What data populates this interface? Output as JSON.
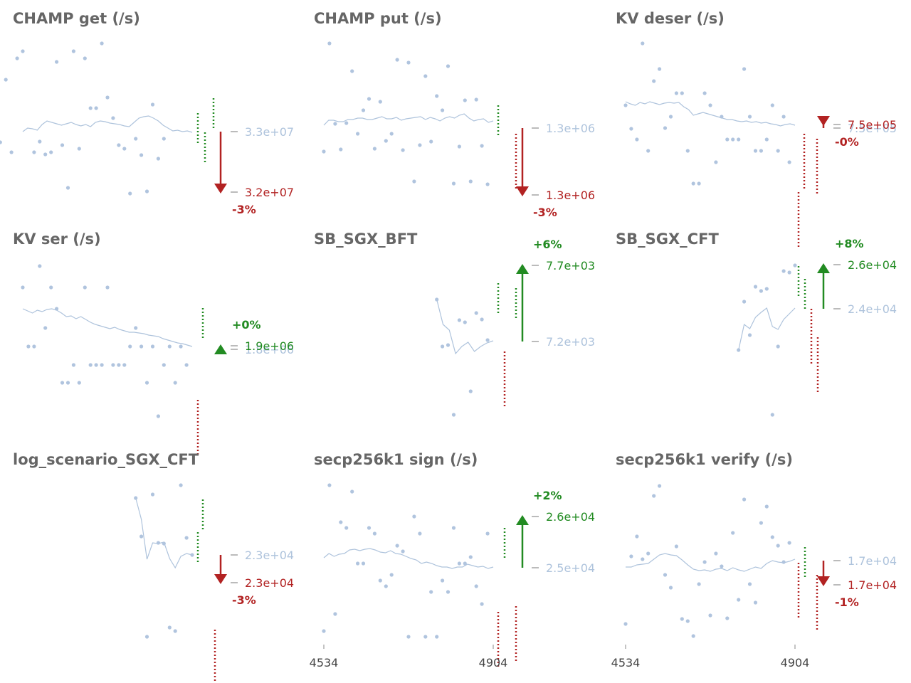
{
  "chart_data": [
    {
      "type": "scatter",
      "title": "CHAMP get (/s)",
      "points": [
        [
          -5,
          195
        ],
        [
          -4,
          200
        ],
        [
          -3,
          112
        ],
        [
          -2,
          214
        ],
        [
          -1,
          82
        ],
        [
          0,
          72
        ],
        [
          2,
          214
        ],
        [
          3,
          199
        ],
        [
          4,
          217
        ],
        [
          5,
          214
        ],
        [
          6,
          87
        ],
        [
          7,
          204
        ],
        [
          8,
          264
        ],
        [
          9,
          72
        ],
        [
          10,
          209
        ],
        [
          11,
          82
        ],
        [
          12,
          152
        ],
        [
          13,
          152
        ],
        [
          14,
          61
        ],
        [
          15,
          137
        ],
        [
          16,
          166
        ],
        [
          17,
          204
        ],
        [
          18,
          209
        ],
        [
          19,
          272
        ],
        [
          20,
          195
        ],
        [
          21,
          218
        ],
        [
          22,
          269
        ],
        [
          23,
          147
        ],
        [
          24,
          223
        ],
        [
          25,
          195
        ]
      ],
      "line": [
        185,
        180,
        181,
        183,
        175,
        170,
        172,
        174,
        176,
        174,
        172,
        175,
        177,
        175,
        178,
        172,
        170,
        171,
        173,
        174,
        175,
        177,
        178,
        172,
        166,
        164,
        163,
        166,
        170,
        176,
        180,
        184,
        183,
        185,
        184,
        186
      ],
      "bars": [
        [
          2,
          278,
          159,
          "#228b22"
        ],
        [
          3,
          288,
          186,
          "#228b22"
        ],
        [
          3,
          300,
          138,
          "#228b22"
        ]
      ],
      "current_label": "3.3e+07",
      "new_label": "3.2e+07",
      "change": "-3%",
      "direction": "down"
    },
    {
      "type": "scatter",
      "title": "CHAMP put (/s)",
      "points": [
        [
          0,
          213
        ],
        [
          1,
          61
        ],
        [
          2,
          174
        ],
        [
          3,
          210
        ],
        [
          4,
          173
        ],
        [
          5,
          100
        ],
        [
          6,
          188
        ],
        [
          7,
          155
        ],
        [
          8,
          139
        ],
        [
          9,
          209
        ],
        [
          10,
          143
        ],
        [
          11,
          198
        ],
        [
          12,
          188
        ],
        [
          13,
          84
        ],
        [
          14,
          211
        ],
        [
          15,
          88
        ],
        [
          16,
          255
        ],
        [
          17,
          204
        ],
        [
          18,
          107
        ],
        [
          19,
          199
        ],
        [
          20,
          135
        ],
        [
          21,
          155
        ],
        [
          22,
          93
        ],
        [
          23,
          258
        ],
        [
          24,
          206
        ],
        [
          25,
          141
        ],
        [
          26,
          255
        ],
        [
          27,
          140
        ],
        [
          28,
          205
        ],
        [
          29,
          259
        ]
      ],
      "line": [
        176,
        169,
        169,
        171,
        171,
        168,
        168,
        166,
        166,
        168,
        168,
        166,
        164,
        167,
        167,
        165,
        169,
        167,
        166,
        165,
        164,
        168,
        165,
        167,
        170,
        166,
        164,
        166,
        162,
        160,
        166,
        170,
        168,
        167,
        172,
        170
      ],
      "bars": [
        [
          2,
          700,
          148,
          "#228b22"
        ],
        [
          3,
          725,
          188,
          "#b22222"
        ]
      ],
      "current_label": "1.3e+06",
      "new_label": "1.3e+06",
      "change": "-3%",
      "direction": "down"
    },
    {
      "type": "scatter",
      "title": "KV deser (/s)",
      "points": [
        [
          0,
          148
        ],
        [
          1,
          181
        ],
        [
          2,
          196
        ],
        [
          3,
          61
        ],
        [
          4,
          212
        ],
        [
          5,
          114
        ],
        [
          6,
          97
        ],
        [
          7,
          180
        ],
        [
          8,
          164
        ],
        [
          9,
          131
        ],
        [
          10,
          131
        ],
        [
          11,
          212
        ],
        [
          12,
          258
        ],
        [
          13,
          258
        ],
        [
          14,
          131
        ],
        [
          15,
          148
        ],
        [
          16,
          228
        ],
        [
          17,
          164
        ],
        [
          18,
          196
        ],
        [
          19,
          196
        ],
        [
          20,
          196
        ],
        [
          21,
          97
        ],
        [
          22,
          164
        ],
        [
          23,
          212
        ],
        [
          24,
          212
        ],
        [
          25,
          196
        ],
        [
          26,
          148
        ],
        [
          27,
          212
        ],
        [
          28,
          164
        ],
        [
          29,
          228
        ]
      ],
      "line": [
        143,
        146,
        148,
        144,
        146,
        143,
        145,
        147,
        145,
        144,
        145,
        144,
        150,
        154,
        162,
        160,
        158,
        160,
        162,
        164,
        166,
        168,
        168,
        170,
        171,
        170,
        172,
        171,
        173,
        172,
        174,
        175,
        177,
        175,
        174,
        176
      ],
      "bars": [
        [
          2,
          1122,
          270,
          "#b22222"
        ],
        [
          3,
          1130,
          188,
          "#b22222"
        ],
        [
          3,
          1148,
          195,
          "#b22222"
        ]
      ],
      "current_label": "7.5e+05",
      "new_label": "7.5e+05",
      "change": "-0%",
      "direction": "down"
    },
    {
      "type": "scatter",
      "title": "KV ser (/s)",
      "points": [
        [
          0,
          404
        ],
        [
          1,
          487
        ],
        [
          2,
          487
        ],
        [
          3,
          374
        ],
        [
          4,
          461
        ],
        [
          5,
          404
        ],
        [
          6,
          434
        ],
        [
          7,
          538
        ],
        [
          8,
          538
        ],
        [
          9,
          513
        ],
        [
          10,
          538
        ],
        [
          11,
          404
        ],
        [
          12,
          513
        ],
        [
          13,
          513
        ],
        [
          14,
          513
        ],
        [
          15,
          404
        ],
        [
          16,
          513
        ],
        [
          17,
          513
        ],
        [
          18,
          513
        ],
        [
          19,
          487
        ],
        [
          20,
          461
        ],
        [
          21,
          487
        ],
        [
          22,
          538
        ],
        [
          23,
          487
        ],
        [
          24,
          585
        ],
        [
          25,
          513
        ],
        [
          26,
          487
        ],
        [
          27,
          538
        ],
        [
          28,
          487
        ],
        [
          29,
          513
        ]
      ],
      "line": [
        434,
        437,
        440,
        436,
        438,
        435,
        434,
        436,
        440,
        445,
        444,
        448,
        445,
        449,
        453,
        456,
        458,
        460,
        462,
        460,
        463,
        465,
        467,
        467,
        468,
        469,
        471,
        472,
        473,
        476,
        478,
        480,
        482,
        483,
        485,
        487
      ],
      "bars": [
        [
          2,
          285,
          433,
          "#228b22"
        ],
        [
          3,
          278,
          562,
          "#b22222"
        ]
      ],
      "current_label": "1.8e+06",
      "new_label": "1.9e+06",
      "change": "+0%",
      "direction": "up"
    },
    {
      "type": "scatter",
      "title": "SB_SGX_BFT",
      "points": [
        [
          20,
          421
        ],
        [
          21,
          487
        ],
        [
          22,
          485
        ],
        [
          23,
          583
        ],
        [
          24,
          450
        ],
        [
          25,
          453
        ],
        [
          26,
          550
        ],
        [
          27,
          440
        ],
        [
          28,
          449
        ],
        [
          29,
          478
        ]
      ],
      "line": [
        421,
        456,
        464,
        497,
        487,
        481,
        494,
        487,
        482,
        479
      ],
      "bars": [
        [
          2,
          700,
          398,
          "#228b22"
        ],
        [
          3,
          725,
          405,
          "#228b22"
        ],
        [
          3,
          709,
          494,
          "#b22222"
        ]
      ],
      "current_label": "7.2e+03",
      "new_label": "7.7e+03",
      "change": "+6%",
      "direction": "up"
    },
    {
      "type": "scatter",
      "title": "SB_SGX_CFT",
      "points": [
        [
          20,
          492
        ],
        [
          21,
          424
        ],
        [
          22,
          471
        ],
        [
          23,
          403
        ],
        [
          24,
          409
        ],
        [
          25,
          406
        ],
        [
          26,
          583
        ],
        [
          27,
          487
        ],
        [
          28,
          381
        ],
        [
          29,
          383
        ],
        [
          30,
          373
        ]
      ],
      "line": [
        492,
        456,
        462,
        446,
        439,
        433,
        459,
        463,
        449,
        441,
        433
      ],
      "bars": [
        [
          2,
          1122,
          374,
          "#228b22"
        ],
        [
          3,
          1131,
          392,
          "#228b22"
        ],
        [
          3,
          1149,
          474,
          "#b22222"
        ],
        [
          3,
          1140,
          434,
          "#b22222"
        ]
      ],
      "current_label": "2.4e+04",
      "new_label": "2.6e+04",
      "change": "+8%",
      "direction": "up"
    },
    {
      "type": "scatter",
      "title": "log_scenario_SGX_CFT",
      "points": [
        [
          20,
          700
        ],
        [
          21,
          754
        ],
        [
          22,
          895
        ],
        [
          23,
          695
        ],
        [
          24,
          763
        ],
        [
          25,
          764
        ],
        [
          26,
          882
        ],
        [
          27,
          887
        ],
        [
          28,
          682
        ],
        [
          29,
          756
        ],
        [
          30,
          780
        ]
      ],
      "line": [
        700,
        730,
        786,
        763,
        764,
        762,
        785,
        798,
        782,
        778,
        780
      ],
      "bars": [
        [
          2,
          285,
          702,
          "#228b22"
        ],
        [
          3,
          278,
          748,
          "#228b22"
        ],
        [
          3,
          302,
          885,
          "#b22222"
        ]
      ],
      "current_label": "2.3e+04",
      "new_label": "2.3e+04",
      "change": "-3%",
      "direction": "down"
    },
    {
      "type": "scatter",
      "title": "secp256k1 sign (/s)",
      "points": [
        [
          0,
          887
        ],
        [
          1,
          682
        ],
        [
          2,
          863
        ],
        [
          3,
          734
        ],
        [
          4,
          742
        ],
        [
          5,
          691
        ],
        [
          6,
          792
        ],
        [
          7,
          792
        ],
        [
          8,
          742
        ],
        [
          9,
          750
        ],
        [
          10,
          816
        ],
        [
          11,
          824
        ],
        [
          12,
          808
        ],
        [
          13,
          767
        ],
        [
          14,
          775
        ],
        [
          15,
          895
        ],
        [
          16,
          726
        ],
        [
          17,
          750
        ],
        [
          18,
          895
        ],
        [
          19,
          832
        ],
        [
          20,
          895
        ],
        [
          21,
          816
        ],
        [
          22,
          832
        ],
        [
          23,
          742
        ],
        [
          24,
          792
        ],
        [
          25,
          792
        ],
        [
          26,
          783
        ],
        [
          27,
          824
        ],
        [
          28,
          849
        ],
        [
          29,
          750
        ]
      ],
      "line": [
        784,
        778,
        782,
        779,
        778,
        773,
        772,
        774,
        772,
        771,
        773,
        776,
        777,
        774,
        778,
        779,
        782,
        785,
        787,
        792,
        790,
        792,
        795,
        797,
        797,
        799,
        797,
        797,
        793,
        795,
        797,
        796,
        799,
        797
      ],
      "bars": [
        [
          2,
          709,
          742,
          "#228b22"
        ],
        [
          3,
          700,
          860,
          "#b22222"
        ],
        [
          3,
          725,
          852,
          "#b22222"
        ]
      ],
      "current_label": "2.5e+04",
      "new_label": "2.6e+04",
      "change": "+2%",
      "direction": "up"
    },
    {
      "type": "scatter",
      "title": "secp256k1 verify (/s)",
      "points": [
        [
          0,
          877
        ],
        [
          1,
          782
        ],
        [
          2,
          754
        ],
        [
          3,
          786
        ],
        [
          4,
          778
        ],
        [
          5,
          697
        ],
        [
          6,
          683
        ],
        [
          7,
          808
        ],
        [
          8,
          826
        ],
        [
          9,
          768
        ],
        [
          10,
          870
        ],
        [
          11,
          873
        ],
        [
          12,
          894
        ],
        [
          13,
          821
        ],
        [
          14,
          790
        ],
        [
          15,
          865
        ],
        [
          16,
          778
        ],
        [
          17,
          796
        ],
        [
          18,
          869
        ],
        [
          19,
          749
        ],
        [
          20,
          843
        ],
        [
          21,
          702
        ],
        [
          22,
          821
        ],
        [
          23,
          847
        ],
        [
          24,
          735
        ],
        [
          25,
          712
        ],
        [
          26,
          755
        ],
        [
          27,
          767
        ],
        [
          28,
          790
        ],
        [
          29,
          763
        ]
      ],
      "line": [
        797,
        797,
        794,
        793,
        792,
        786,
        780,
        778,
        780,
        781,
        787,
        794,
        800,
        802,
        801,
        803,
        800,
        799,
        802,
        798,
        801,
        803,
        800,
        797,
        799,
        792,
        788,
        790,
        791,
        789,
        786
      ],
      "bars": [
        [
          2,
          1131,
          769,
          "#228b22"
        ],
        [
          3,
          1122,
          791,
          "#b22222"
        ],
        [
          3,
          1148,
          808,
          "#b22222"
        ]
      ],
      "current_label": "1.7e+04",
      "new_label": "1.7e+04",
      "change": "-1%",
      "direction": "down"
    }
  ],
  "x_ticks": [
    "4534",
    "4904"
  ]
}
